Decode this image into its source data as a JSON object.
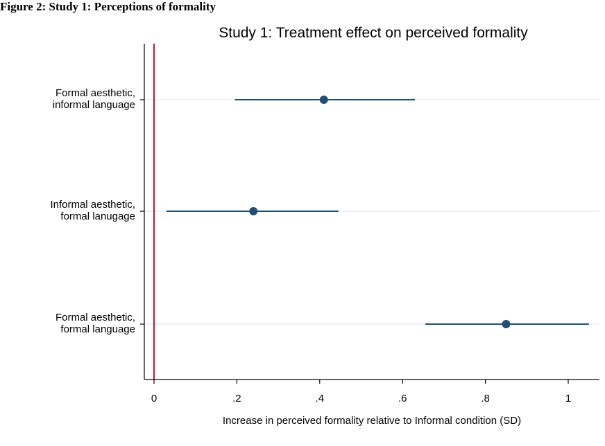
{
  "header": {
    "caption": "Figure 2: Study 1: Perceptions of formality"
  },
  "colors": {
    "marker": "#1f4e79",
    "ci_line": "#1f4e79",
    "reference_line": "#c8102e",
    "gridline": "#e8eef4",
    "axis": "#000000"
  },
  "chart_data": {
    "type": "scatter",
    "subtype": "coefficient-plot",
    "title": "Study 1: Treatment effect on perceived formality",
    "xlabel": "Increase in perceived formality relative to Informal condition (SD)",
    "ylabel": "",
    "xlim": [
      -0.02,
      1.05
    ],
    "reference_line_x": 0,
    "grid": "horizontal",
    "x_ticks": [
      0,
      0.2,
      0.4,
      0.6,
      0.8,
      1
    ],
    "x_tick_labels": [
      "0",
      ".2",
      ".4",
      ".6",
      ".8",
      "1"
    ],
    "categories": [
      {
        "lines": [
          "Formal aesthetic,",
          "informal language"
        ]
      },
      {
        "lines": [
          "Informal aesthetic,",
          "formal lanugage"
        ]
      },
      {
        "lines": [
          "Formal aesthetic,",
          "formal language"
        ]
      }
    ],
    "estimates": [
      0.41,
      0.24,
      0.85
    ],
    "ci_low": [
      0.195,
      0.03,
      0.655
    ],
    "ci_high": [
      0.63,
      0.445,
      1.05
    ]
  }
}
